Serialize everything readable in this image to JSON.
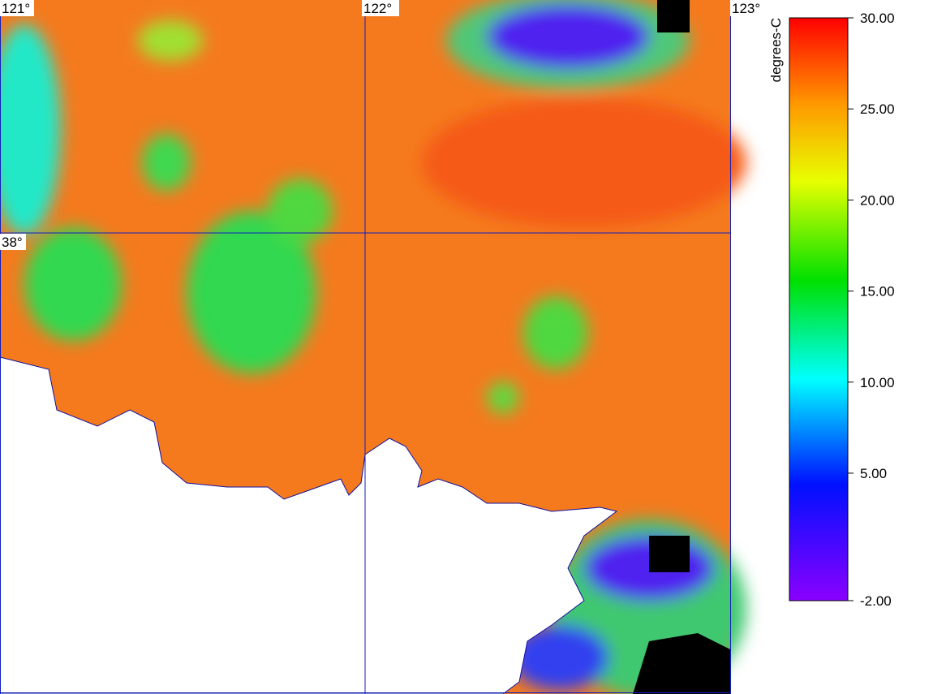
{
  "map": {
    "grid_labels": {
      "lon": [
        "121°",
        "122°",
        "123°"
      ],
      "lat": [
        "38°"
      ]
    }
  },
  "colorbar": {
    "label": "degrees-C",
    "range": [
      -2,
      30
    ],
    "ticks": [
      {
        "value": 30,
        "label": "30.00"
      },
      {
        "value": 25,
        "label": "25.00"
      },
      {
        "value": 20,
        "label": "20.00"
      },
      {
        "value": 15,
        "label": "15.00"
      },
      {
        "value": 10,
        "label": "10.00"
      },
      {
        "value": 5,
        "label": "5.00"
      },
      {
        "value": -2,
        "label": "-2.00"
      }
    ]
  }
}
